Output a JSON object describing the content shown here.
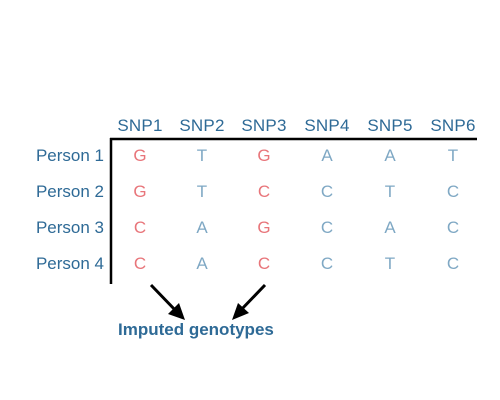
{
  "columns": [
    "SNP1",
    "SNP2",
    "SNP3",
    "SNP4",
    "SNP5",
    "SNP6"
  ],
  "rows": [
    {
      "label": "Person 1",
      "genotypes": [
        "G",
        "T",
        "G",
        "A",
        "A",
        "T"
      ]
    },
    {
      "label": "Person 2",
      "genotypes": [
        "G",
        "T",
        "C",
        "C",
        "T",
        "C"
      ]
    },
    {
      "label": "Person 3",
      "genotypes": [
        "C",
        "A",
        "G",
        "C",
        "A",
        "C"
      ]
    },
    {
      "label": "Person 4",
      "genotypes": [
        "C",
        "A",
        "C",
        "C",
        "T",
        "C"
      ]
    }
  ],
  "imputed_columns": [
    0,
    2
  ],
  "caption": "Imputed genotypes",
  "colors": {
    "header": "#2e6a96",
    "imputed": "#e8757a",
    "observed": "#7fa8c4",
    "lines": "#000000"
  }
}
